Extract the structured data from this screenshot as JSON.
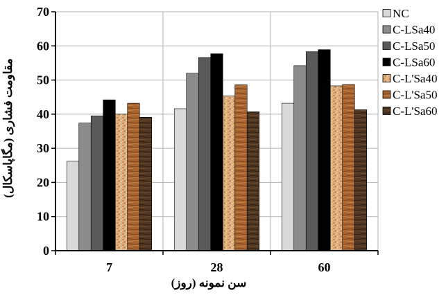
{
  "chart_data": {
    "type": "bar",
    "xlabel": "سن نمونه (روز)",
    "ylabel": "مقاومت فشاری (مگاپاسکال)",
    "categories": [
      "7",
      "28",
      "60"
    ],
    "ylim": [
      0,
      70
    ],
    "yticks": [
      "0",
      "10",
      "20",
      "30",
      "40",
      "50",
      "60",
      "70"
    ],
    "grid": true,
    "legend_position": "right",
    "series": [
      {
        "name": "NC",
        "values": [
          26.2,
          41.6,
          43.2
        ],
        "color": "#d9d9d9",
        "pattern": "solid"
      },
      {
        "name": "C-LSa40",
        "values": [
          37.4,
          52.0,
          54.2
        ],
        "color": "#8c8c8c",
        "pattern": "solid"
      },
      {
        "name": "C-LSa50",
        "values": [
          39.5,
          56.6,
          58.3
        ],
        "color": "#595959",
        "pattern": "solid"
      },
      {
        "name": "C-LSa60",
        "values": [
          44.2,
          57.7,
          58.9
        ],
        "color": "#000000",
        "pattern": "solid"
      },
      {
        "name": "C-L'Sa40",
        "values": [
          40.0,
          45.3,
          48.3
        ],
        "color": "#d9a57a",
        "pattern": "speckle"
      },
      {
        "name": "C-L'Sa50",
        "values": [
          43.2,
          48.6,
          48.7
        ],
        "color": "#a4612e",
        "pattern": "wood"
      },
      {
        "name": "C-L'Sa60",
        "values": [
          39.1,
          40.7,
          41.3
        ],
        "color": "#4b3421",
        "pattern": "wood-dark"
      }
    ]
  }
}
